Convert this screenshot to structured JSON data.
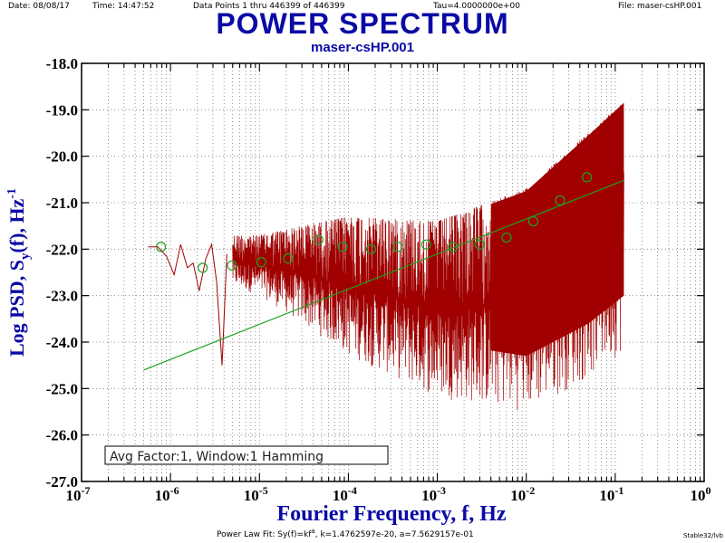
{
  "header": {
    "date": "Date: 08/08/17",
    "time": "Time: 14:47:52",
    "data_points": "Data Points 1 thru 446399 of 446399",
    "tau": "Tau=4.0000000e+00",
    "file": "File: maser-csHP.001"
  },
  "footer": {
    "fit_prefix": "Power Law Fit: Sy(f)=kf",
    "fit_exp": "a",
    "fit_suffix": ", k=1.4762597e-20, a=7.5629157e-01",
    "app": "Stable32/lvb"
  },
  "chart_data": {
    "type": "line",
    "title": "POWER SPECTRUM",
    "subtitle": "maser-csHP.001",
    "xlabel": "Fourier Frequency, f, Hz",
    "ylabel": "Log PSD, S",
    "ylabel_sub": "y",
    "ylabel_rest": "(f), Hz",
    "ylabel_sup": "-1",
    "x_scale": "log",
    "xlim": [
      1e-07,
      1
    ],
    "ylim": [
      -27.0,
      -18.0
    ],
    "x_ticks": [
      {
        "base": "10",
        "exp": "-7",
        "value": 1e-07
      },
      {
        "base": "10",
        "exp": "-6",
        "value": 1e-06
      },
      {
        "base": "10",
        "exp": "-5",
        "value": 1e-05
      },
      {
        "base": "10",
        "exp": "-4",
        "value": 0.0001
      },
      {
        "base": "10",
        "exp": "-3",
        "value": 0.001
      },
      {
        "base": "10",
        "exp": "-2",
        "value": 0.01
      },
      {
        "base": "10",
        "exp": "-1",
        "value": 0.1
      },
      {
        "base": "10",
        "exp": "0",
        "value": 1
      }
    ],
    "y_ticks": [
      "-18.0",
      "-19.0",
      "-20.0",
      "-21.0",
      "-22.0",
      "-23.0",
      "-24.0",
      "-25.0",
      "-26.0",
      "-27.0"
    ],
    "y_tick_values": [
      -18,
      -19,
      -20,
      -21,
      -22,
      -23,
      -24,
      -25,
      -26,
      -27
    ],
    "annotation": "Avg Factor:1, Window:1 Hamming",
    "grid": true,
    "colors": {
      "psd": "#a00000",
      "fit": "#1fa01f",
      "title": "#0a0aa6",
      "label": "#0a0aa6"
    },
    "psd_series": {
      "name": "PSD",
      "f_start": 5.6e-07,
      "f_end": 0.125,
      "low_freq_points": [
        {
          "f": 5.6e-07,
          "y": -21.95
        },
        {
          "f": 7.2e-07,
          "y": -21.95
        },
        {
          "f": 9e-07,
          "y": -22.15
        },
        {
          "f": 1.1e-06,
          "y": -22.55
        },
        {
          "f": 1.3e-06,
          "y": -21.9
        },
        {
          "f": 1.55e-06,
          "y": -22.4
        },
        {
          "f": 1.8e-06,
          "y": -22.3
        },
        {
          "f": 2.1e-06,
          "y": -22.9
        },
        {
          "f": 2.5e-06,
          "y": -22.2
        },
        {
          "f": 2.9e-06,
          "y": -21.9
        },
        {
          "f": 3.3e-06,
          "y": -22.7
        },
        {
          "f": 3.8e-06,
          "y": -24.5
        },
        {
          "f": 4.3e-06,
          "y": -22.1
        }
      ],
      "envelope": [
        {
          "f": 5e-06,
          "upper": -21.7,
          "lower": -22.8
        },
        {
          "f": 1e-05,
          "upper": -21.7,
          "lower": -23.0
        },
        {
          "f": 3e-05,
          "upper": -21.5,
          "lower": -23.6
        },
        {
          "f": 0.0001,
          "upper": -21.3,
          "lower": -24.3
        },
        {
          "f": 0.001,
          "upper": -21.4,
          "lower": -25.2
        },
        {
          "f": 0.01,
          "upper": -20.7,
          "lower": -25.5
        },
        {
          "f": 0.05,
          "upper": -19.5,
          "lower": -24.8
        },
        {
          "f": 0.125,
          "upper": -18.8,
          "lower": -24.2
        }
      ]
    },
    "averaged_points": {
      "name": "octave-averaged",
      "points": [
        {
          "f": 7.8e-07,
          "y": -21.95
        },
        {
          "f": 2.3e-06,
          "y": -22.4
        },
        {
          "f": 4.9e-06,
          "y": -22.35
        },
        {
          "f": 1.05e-05,
          "y": -22.28
        },
        {
          "f": 2.1e-05,
          "y": -22.2
        },
        {
          "f": 4.6e-05,
          "y": -21.8
        },
        {
          "f": 8.6e-05,
          "y": -21.95
        },
        {
          "f": 0.00018,
          "y": -22.0
        },
        {
          "f": 0.00036,
          "y": -21.95
        },
        {
          "f": 0.00075,
          "y": -21.9
        },
        {
          "f": 0.0015,
          "y": -21.95
        },
        {
          "f": 0.003,
          "y": -21.9
        },
        {
          "f": 0.006,
          "y": -21.75
        },
        {
          "f": 0.012,
          "y": -21.4
        },
        {
          "f": 0.024,
          "y": -20.95
        },
        {
          "f": 0.048,
          "y": -20.45
        }
      ]
    },
    "fit_line": {
      "name": "Power Law Fit",
      "points": [
        {
          "f": 5e-07,
          "y": -24.6
        },
        {
          "f": 0.125,
          "y": -20.52
        }
      ]
    }
  }
}
